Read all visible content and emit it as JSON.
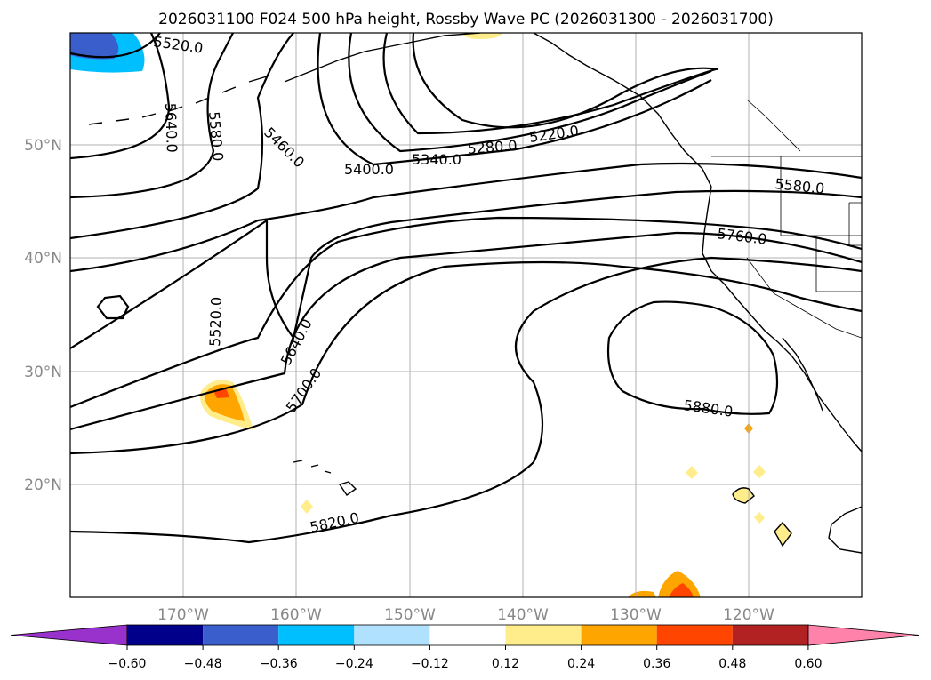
{
  "title": "2026031100 F024 500 hPa height, Rossby Wave PC (2026031300 - 2026031700)",
  "lat_labels": [
    "50°N",
    "40°N",
    "30°N",
    "20°N"
  ],
  "lon_labels": [
    "170°W",
    "160°W",
    "150°W",
    "140°W",
    "130°W",
    "120°W"
  ],
  "contour_labels": [
    "5520.0",
    "5640.0",
    "5580.0",
    "5460.0",
    "5400.0",
    "5340.0",
    "5280.0",
    "5220.0",
    "5580.0",
    "5760.0",
    "5520.0",
    "5640.0",
    "5700.0",
    "5880.0",
    "5820.0"
  ],
  "colorbar": {
    "ticks": [
      "−0.60",
      "−0.48",
      "−0.36",
      "−0.24",
      "−0.12",
      "0.12",
      "0.24",
      "0.36",
      "0.48",
      "0.60"
    ],
    "colors": [
      "#9932cc",
      "#00008b",
      "#3a5fcd",
      "#00bfff",
      "#b0e2ff",
      "#ffffff",
      "#ffec8b",
      "#ffa500",
      "#ff4500",
      "#b22222",
      "#ff82ab"
    ]
  }
}
